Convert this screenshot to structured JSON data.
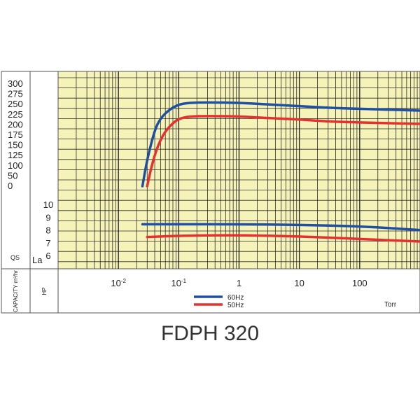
{
  "title": "FDPH 320",
  "chart_data": {
    "type": "line",
    "title": "FDPH 320",
    "x_scale": "log",
    "xlim": [
      0.001,
      1000
    ],
    "x_ticks": [
      {
        "value": 0.01,
        "base": "10",
        "exp": "-2"
      },
      {
        "value": 0.1,
        "base": "10",
        "exp": "-1"
      },
      {
        "value": 1,
        "label": "1"
      },
      {
        "value": 10,
        "label": "10"
      },
      {
        "value": 100,
        "label": "100"
      }
    ],
    "x_unit": "Torr",
    "upper_axis": {
      "ylabel": "QS",
      "vertical_label": "CAPACITY m³/hr",
      "ylim": [
        0,
        300
      ],
      "ticks": [
        "300",
        "275",
        "250",
        "225",
        "200",
        "175",
        "150",
        "125",
        "100",
        "50",
        "0"
      ]
    },
    "lower_axis": {
      "ylabel": "La",
      "vertical_label": "HP",
      "ylim": [
        6,
        10
      ],
      "ticks": [
        "10",
        "9",
        "8",
        "7",
        "6"
      ]
    },
    "series": [
      {
        "name": "60Hz",
        "color": "#1f4fa0",
        "axis": "capacity",
        "x": [
          0.025,
          0.03,
          0.04,
          0.05,
          0.07,
          0.1,
          0.15,
          0.3,
          1,
          3,
          10,
          30,
          100,
          1000
        ],
        "y": [
          0,
          80,
          165,
          200,
          225,
          240,
          245,
          246,
          245,
          240,
          235,
          230,
          227,
          222
        ]
      },
      {
        "name": "50Hz",
        "color": "#e53030",
        "axis": "capacity",
        "x": [
          0.03,
          0.035,
          0.045,
          0.06,
          0.08,
          0.1,
          0.15,
          0.3,
          1,
          3,
          10,
          30,
          100,
          1000
        ],
        "y": [
          0,
          55,
          120,
          162,
          185,
          198,
          205,
          206,
          205,
          200,
          196,
          190,
          187,
          183
        ]
      },
      {
        "name": "60Hz",
        "color": "#1f4fa0",
        "axis": "power",
        "x": [
          0.025,
          0.1,
          1,
          10,
          100,
          1000
        ],
        "y": [
          8.5,
          8.5,
          8.5,
          8.45,
          8.35,
          8.05
        ]
      },
      {
        "name": "50Hz",
        "color": "#e53030",
        "axis": "power",
        "x": [
          0.03,
          0.1,
          1,
          10,
          100,
          1000
        ],
        "y": [
          7.5,
          7.6,
          7.65,
          7.55,
          7.35,
          7.15
        ]
      }
    ],
    "legend": {
      "placement": "bottom-center",
      "entries": [
        {
          "name": "60Hz",
          "color": "#1f4fa0"
        },
        {
          "name": "50Hz",
          "color": "#e53030"
        }
      ]
    },
    "grid": true
  },
  "colors": {
    "background": "#f6f3b8",
    "grid": "#2a2a2a",
    "frame": "#555555"
  }
}
